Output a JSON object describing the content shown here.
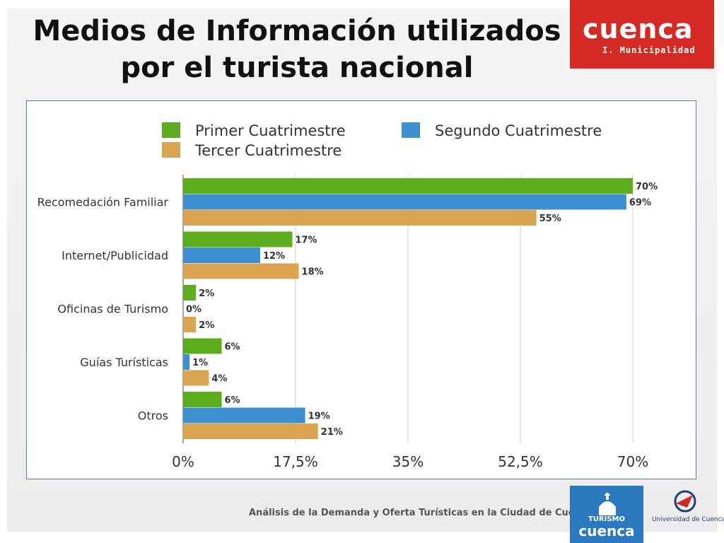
{
  "slide": {
    "title_line1": "Medios de Información utilizados",
    "title_line2": "por el turista nacional",
    "logo_top_word": "cuenca",
    "logo_top_sub": "I. Municipalidad",
    "footer": "Análisis de la Demanda y Oferta Turísticas en la Ciudad de Cuenca",
    "logo_turismo_top": "TURISMO",
    "logo_turismo_word": "cuenca",
    "logo_univ": "Universidad de Cuenca"
  },
  "chart_data": {
    "type": "bar",
    "orientation": "horizontal",
    "title": "",
    "categories": [
      "Recomedación Familiar",
      "Internet/Publicidad",
      "Oficinas de Turismo",
      "Guías Turísticas",
      "Otros"
    ],
    "series": [
      {
        "name": "Primer Cuatrimestre",
        "color": "#5cad1d",
        "values": [
          70,
          17,
          2,
          6,
          6
        ],
        "labels": [
          "70%",
          "17%",
          "2%",
          "6%",
          "6%"
        ]
      },
      {
        "name": "Segundo Cuatrimestre",
        "color": "#3d8fd0",
        "values": [
          69,
          12,
          0,
          1,
          19
        ],
        "labels": [
          "69%",
          "12%",
          "0%",
          "1%",
          "19%"
        ]
      },
      {
        "name": "Tercer Cuatrimestre",
        "color": "#dba451",
        "values": [
          55,
          18,
          2,
          4,
          21
        ],
        "labels": [
          "55%",
          "18%",
          "2%",
          "4%",
          "21%"
        ]
      }
    ],
    "xlim": [
      0,
      70
    ],
    "xticks": [
      0,
      17.5,
      35,
      52.5,
      70
    ],
    "xtick_labels": [
      "0%",
      "17,5%",
      "35%",
      "52,5%",
      "70%"
    ],
    "grid": true,
    "legend_position": "top"
  }
}
